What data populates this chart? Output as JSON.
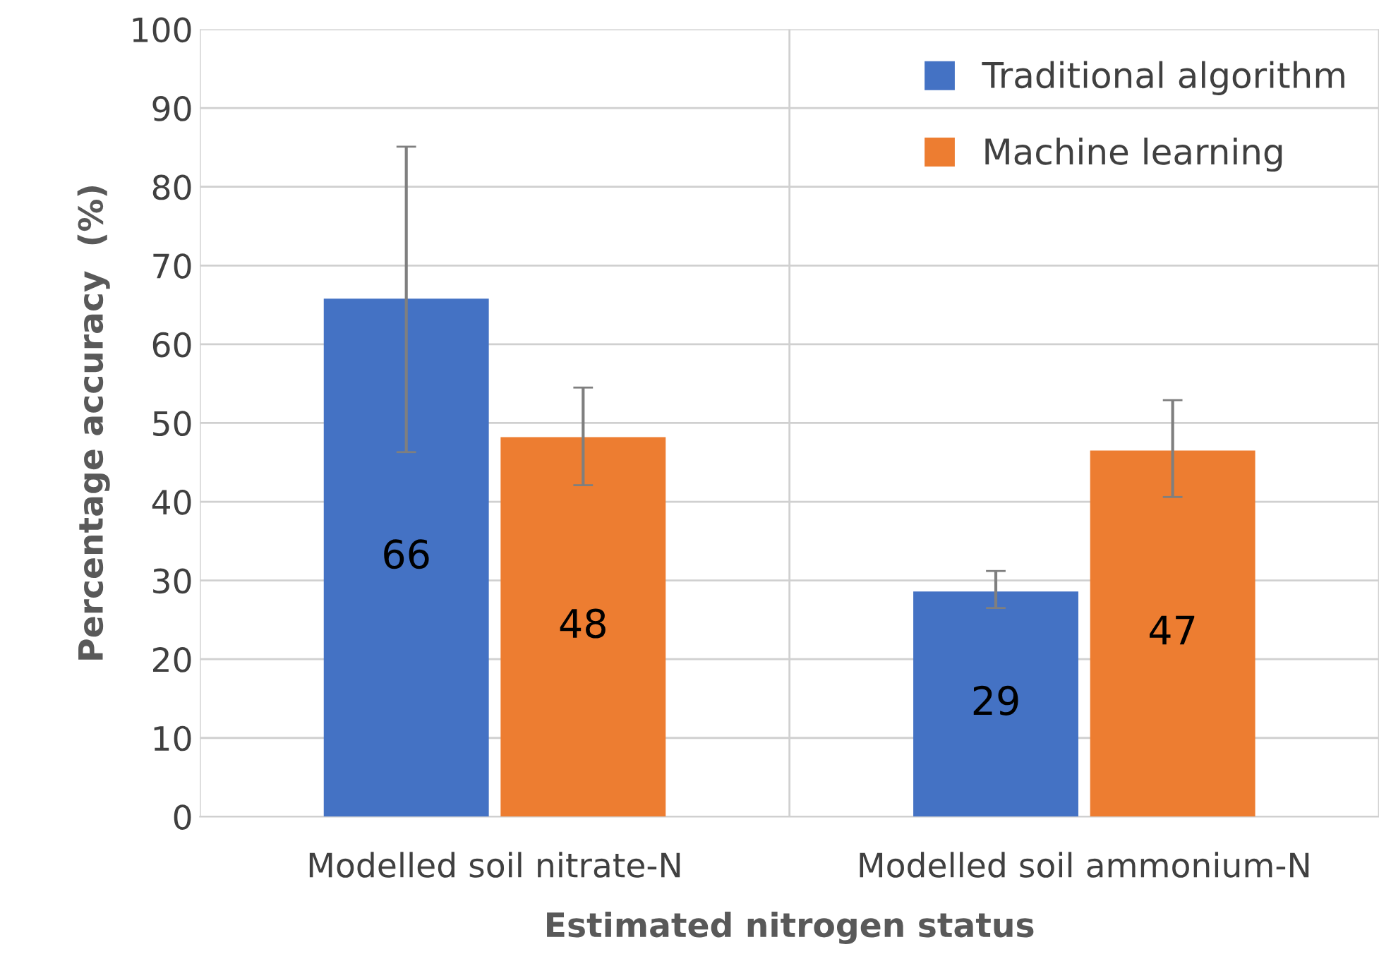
{
  "chart_data": {
    "type": "bar",
    "xlabel": "Estimated nitrogen status",
    "ylabel": "Percentage accuracy  (%)",
    "categories": [
      "Modelled soil nitrate-N",
      "Modelled soil ammonium-N"
    ],
    "series": [
      {
        "name": "Traditional algorithm",
        "color": "#4472c4",
        "values": [
          65.8,
          28.6
        ],
        "errors": [
          [
            46.3,
            85.1
          ],
          [
            26.5,
            31.2
          ]
        ],
        "value_labels": [
          "66",
          "29"
        ]
      },
      {
        "name": "Machine learning",
        "color": "#ed7d31",
        "values": [
          48.2,
          46.5
        ],
        "errors": [
          [
            42.1,
            54.5
          ],
          [
            40.6,
            52.9
          ]
        ],
        "value_labels": [
          "48",
          "47"
        ]
      }
    ],
    "ylim": [
      0,
      100
    ],
    "yticks": [
      0,
      10,
      20,
      30,
      40,
      50,
      60,
      70,
      80,
      90,
      100
    ],
    "grid": true,
    "legend": "top right"
  }
}
